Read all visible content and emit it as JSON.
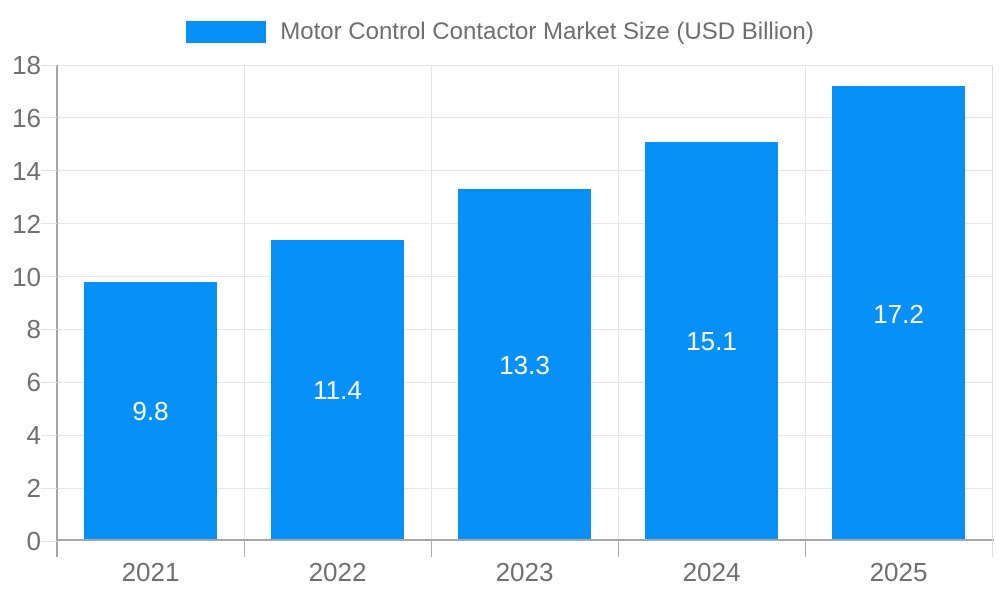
{
  "chart_data": {
    "type": "bar",
    "title": "Motor Control Contactor Market Size (USD Billion)",
    "legend": {
      "position": "top",
      "label": "Motor Control Contactor Market Size (USD Billion)"
    },
    "categories": [
      "2021",
      "2022",
      "2023",
      "2024",
      "2025"
    ],
    "series": [
      {
        "name": "Motor Control Contactor Market Size (USD Billion)",
        "values": [
          9.8,
          11.4,
          13.3,
          15.1,
          17.2
        ],
        "value_labels": [
          "9.8",
          "11.4",
          "13.3",
          "15.1",
          "17.2"
        ]
      }
    ],
    "xlabel": "",
    "ylabel": "",
    "ylim": [
      0,
      18
    ],
    "yticks": [
      0,
      2,
      4,
      6,
      8,
      10,
      12,
      14,
      16,
      18
    ],
    "grid": true,
    "bar_label_position": "center-inside",
    "colors": {
      "bar": "#0690F8",
      "bar_label": "#FFFFFF",
      "grid": "#E6E6E6",
      "axis": "#A6A6A6",
      "tick_mark": "#ACACAC",
      "y_tick_mark": "#E3E3E3",
      "right_border": "#DEDEDE",
      "tick_label": "#707070",
      "legend_text": "#6E6E6E",
      "background": "#FFFFFF"
    }
  }
}
